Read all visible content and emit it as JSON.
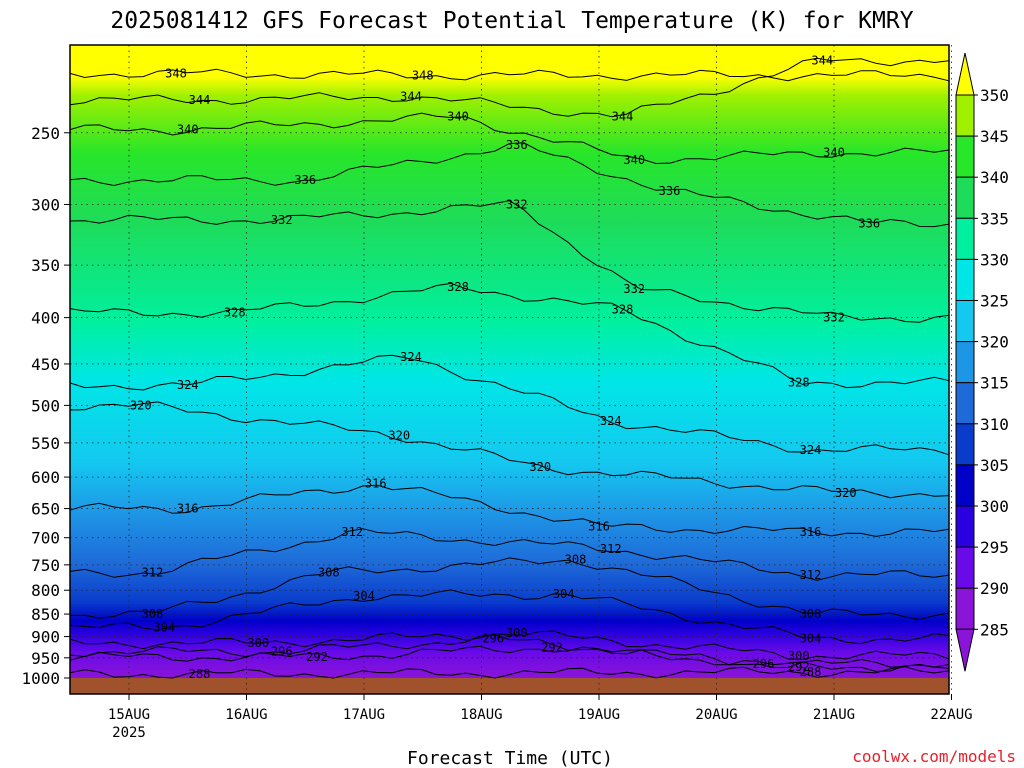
{
  "chart_data": {
    "type": "heatmap",
    "title": "2025081412 GFS Forecast Potential Temperature (K) for KMRY",
    "xlabel": "Forecast Time (UTC)",
    "ylabel": "",
    "x_ticks": [
      "15AUG",
      "16AUG",
      "17AUG",
      "18AUG",
      "19AUG",
      "20AUG",
      "21AUG",
      "22AUG"
    ],
    "x_year_label": "2025",
    "xlim": [
      0,
      7.53
    ],
    "y_ticks": [
      250,
      300,
      350,
      400,
      450,
      500,
      550,
      600,
      650,
      700,
      750,
      800,
      850,
      900,
      950,
      1000
    ],
    "ylim_hPa": [
      200,
      1000
    ],
    "y_scale": "log-pressure (inverted)",
    "grid": "dotted",
    "colorbar": {
      "levels": [
        285,
        290,
        295,
        300,
        305,
        310,
        315,
        320,
        325,
        330,
        335,
        340,
        345,
        350
      ],
      "colors": [
        "#8a14d8",
        "#6a0ae8",
        "#2a00e0",
        "#0000c8",
        "#0a3ccc",
        "#1e6ad8",
        "#1e96e6",
        "#14c8f0",
        "#00e6e6",
        "#00f0a0",
        "#1edc5a",
        "#28e628",
        "#a0f000",
        "#ffff00"
      ],
      "labels": [
        "350",
        "345",
        "340",
        "335",
        "330",
        "325",
        "320",
        "315",
        "310",
        "305",
        "300",
        "295",
        "290",
        "285"
      ]
    },
    "series": [
      {
        "name": "348",
        "values": [
          [
            0.4,
            215
          ],
          [
            2.5,
            216
          ]
        ]
      },
      {
        "name": "344",
        "values": [
          [
            0.6,
            230
          ],
          [
            2.4,
            228
          ],
          [
            4.2,
            240
          ],
          [
            5.9,
            208
          ]
        ]
      },
      {
        "name": "340",
        "values": [
          [
            0.5,
            248
          ],
          [
            2.8,
            240
          ],
          [
            4.3,
            268
          ],
          [
            6.0,
            263
          ]
        ]
      },
      {
        "name": "336",
        "values": [
          [
            1.5,
            282
          ],
          [
            3.3,
            258
          ],
          [
            4.6,
            290
          ],
          [
            6.3,
            315
          ]
        ]
      },
      {
        "name": "332",
        "values": [
          [
            1.3,
            312
          ],
          [
            3.3,
            300
          ],
          [
            4.3,
            372
          ],
          [
            6.0,
            400
          ]
        ]
      },
      {
        "name": "328",
        "values": [
          [
            0.9,
            395
          ],
          [
            2.8,
            370
          ],
          [
            4.2,
            392
          ],
          [
            5.7,
            472
          ]
        ]
      },
      {
        "name": "324",
        "values": [
          [
            0.5,
            475
          ],
          [
            2.4,
            442
          ],
          [
            4.1,
            520
          ],
          [
            5.8,
            560
          ]
        ]
      },
      {
        "name": "320",
        "values": [
          [
            0.1,
            500
          ],
          [
            2.3,
            540
          ],
          [
            3.5,
            585
          ],
          [
            6.1,
            625
          ]
        ]
      },
      {
        "name": "316",
        "values": [
          [
            0.5,
            650
          ],
          [
            2.1,
            610
          ],
          [
            4.0,
            680
          ],
          [
            5.8,
            690
          ]
        ]
      },
      {
        "name": "312",
        "values": [
          [
            0.2,
            765
          ],
          [
            1.9,
            690
          ],
          [
            4.1,
            720
          ],
          [
            5.8,
            770
          ]
        ]
      },
      {
        "name": "308",
        "values": [
          [
            0.2,
            850
          ],
          [
            1.7,
            765
          ],
          [
            3.8,
            740
          ],
          [
            5.8,
            850
          ]
        ]
      },
      {
        "name": "304",
        "values": [
          [
            0.3,
            880
          ],
          [
            2.0,
            812
          ],
          [
            3.7,
            808
          ],
          [
            5.8,
            905
          ]
        ]
      },
      {
        "name": "300",
        "values": [
          [
            1.1,
            915
          ],
          [
            3.3,
            892
          ],
          [
            5.7,
            945
          ]
        ]
      },
      {
        "name": "296",
        "values": [
          [
            1.3,
            935
          ],
          [
            3.1,
            905
          ],
          [
            5.4,
            965
          ]
        ]
      },
      {
        "name": "292",
        "values": [
          [
            1.6,
            948
          ],
          [
            3.6,
            925
          ],
          [
            5.7,
            972
          ]
        ]
      },
      {
        "name": "288",
        "values": [
          [
            0.6,
            990
          ],
          [
            5.8,
            985
          ]
        ]
      }
    ]
  },
  "credit": "coolwx.com/models"
}
